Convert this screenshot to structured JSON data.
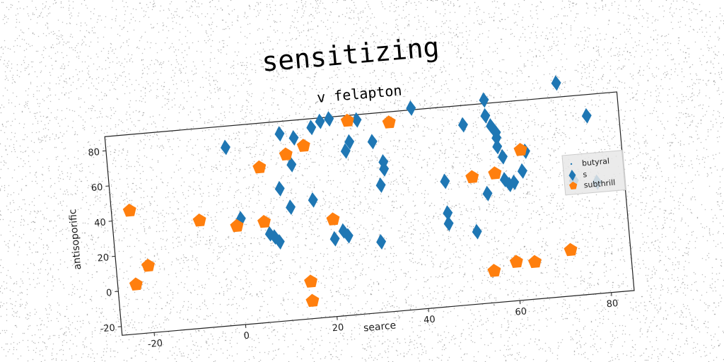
{
  "title": "sensitizing",
  "chart_data": {
    "type": "scatter",
    "title": "v felapton",
    "xlabel": "searce",
    "ylabel": "antisoporific",
    "xlim": [
      -27,
      85
    ],
    "ylim": [
      -25,
      88
    ],
    "xticks": [
      -20,
      0,
      20,
      40,
      60,
      80
    ],
    "yticks": [
      -20,
      0,
      20,
      40,
      60,
      80
    ],
    "grid": false,
    "legend_position": "right",
    "legend": [
      "butyral",
      "s",
      "subthrill"
    ],
    "series": [
      {
        "name": "butyral",
        "marker": "dot",
        "color": "#1f77b4",
        "points": []
      },
      {
        "name": "s",
        "marker": "diamond",
        "color": "#1f77b4",
        "points": [
          [
            -1,
            76
          ],
          [
            1,
            35
          ],
          [
            7,
            25
          ],
          [
            8,
            23
          ],
          [
            9,
            20
          ],
          [
            10,
            50
          ],
          [
            11,
            81
          ],
          [
            12,
            39
          ],
          [
            13,
            63
          ],
          [
            14,
            78
          ],
          [
            17,
            42
          ],
          [
            18,
            83
          ],
          [
            20,
            86
          ],
          [
            21,
            19
          ],
          [
            22,
            87
          ],
          [
            23,
            23
          ],
          [
            24,
            20
          ],
          [
            25,
            68
          ],
          [
            26,
            73
          ],
          [
            28,
            85
          ],
          [
            31,
            15
          ],
          [
            31,
            72
          ],
          [
            32,
            47
          ],
          [
            33,
            56
          ],
          [
            33,
            60
          ],
          [
            40,
            89
          ],
          [
            46,
            22
          ],
          [
            46,
            28
          ],
          [
            46,
            46
          ],
          [
            51,
            77
          ],
          [
            52,
            16
          ],
          [
            55,
            37
          ],
          [
            56,
            90
          ],
          [
            56,
            81
          ],
          [
            57,
            75
          ],
          [
            58,
            71
          ],
          [
            58,
            63
          ],
          [
            58,
            68
          ],
          [
            59,
            57
          ],
          [
            59,
            44
          ],
          [
            60,
            41
          ],
          [
            61,
            42
          ],
          [
            63,
            48
          ],
          [
            64,
            59
          ],
          [
            72,
            96
          ],
          [
            74,
            40
          ],
          [
            78,
            76
          ],
          [
            79,
            38
          ]
        ]
      },
      {
        "name": "subthrill",
        "marker": "pentagon",
        "color": "#ff7f0e",
        "points": [
          [
            -23,
            45
          ],
          [
            -23,
            3
          ],
          [
            -20,
            13
          ],
          [
            -8,
            36
          ],
          [
            0,
            31
          ],
          [
            6,
            63
          ],
          [
            6,
            32
          ],
          [
            12,
            69
          ],
          [
            15,
            -15
          ],
          [
            15,
            -4
          ],
          [
            16,
            73
          ],
          [
            21,
            30
          ],
          [
            26,
            85
          ],
          [
            35,
            82
          ],
          [
            52,
            47
          ],
          [
            55,
            -7
          ],
          [
            57,
            48
          ],
          [
            60,
            -3
          ],
          [
            63,
            60
          ],
          [
            64,
            -4
          ],
          [
            72,
            1
          ]
        ]
      }
    ]
  }
}
